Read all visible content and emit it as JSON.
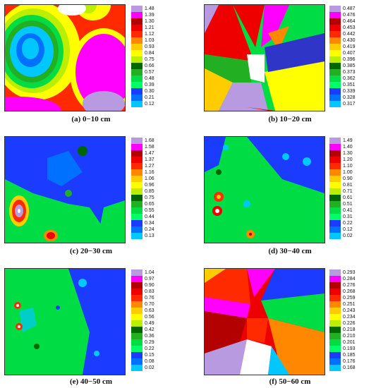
{
  "colors": [
    "#2f35c7",
    "#1b3cff",
    "#0070ff",
    "#00c8ff",
    "#00ff66",
    "#00dd44",
    "#22b022",
    "#006600",
    "#bbee00",
    "#ffff00",
    "#ffcc00",
    "#ff8800",
    "#ff2a00",
    "#ee0000",
    "#b30000",
    "#ff00ff",
    "#b79adf",
    "#ffffff"
  ],
  "chart_data": [
    {
      "type": "heatmap",
      "caption": "(a) 0−10 cm",
      "legend_ticks": [
        "1.48",
        "1.39",
        "1.30",
        "1.21",
        "1.12",
        "1.03",
        "0.93",
        "0.84",
        "0.75",
        "0.66",
        "0.57",
        "0.48",
        "0.39",
        "0.30",
        "0.21",
        "0.12"
      ]
    },
    {
      "type": "heatmap",
      "caption": "(b) 10−20 cm",
      "legend_ticks": [
        "0.487",
        "0.476",
        "0.464",
        "0.453",
        "0.442",
        "0.430",
        "0.419",
        "0.407",
        "0.396",
        "0.385",
        "0.373",
        "0.362",
        "0.351",
        "0.339",
        "0.328",
        "0.317"
      ]
    },
    {
      "type": "heatmap",
      "caption": "(c) 20−30 cm",
      "legend_ticks": [
        "1.68",
        "1.58",
        "1.47",
        "1.37",
        "1.27",
        "1.16",
        "1.06",
        "0.96",
        "0.85",
        "0.75",
        "0.65",
        "0.55",
        "0.44",
        "0.34",
        "0.24",
        "0.13"
      ]
    },
    {
      "type": "heatmap",
      "caption": "(d) 30−40 cm",
      "legend_ticks": [
        "1.49",
        "1.40",
        "1.30",
        "1.20",
        "1.10",
        "1.00",
        "0.90",
        "0.81",
        "0.71",
        "0.61",
        "0.51",
        "0.41",
        "0.31",
        "0.22",
        "0.12",
        "0.02"
      ]
    },
    {
      "type": "heatmap",
      "caption": "(e) 40−50 cm",
      "legend_ticks": [
        "1.04",
        "0.97",
        "0.90",
        "0.83",
        "0.76",
        "0.70",
        "0.63",
        "0.56",
        "0.49",
        "0.42",
        "0.36",
        "0.29",
        "0.22",
        "0.15",
        "0.08",
        "0.02"
      ]
    },
    {
      "type": "heatmap",
      "caption": "(f) 50−60 cm",
      "legend_ticks": [
        "0.293",
        "0.284",
        "0.276",
        "0.268",
        "0.259",
        "0.251",
        "0.243",
        "0.234",
        "0.226",
        "0.218",
        "0.210",
        "0.201",
        "0.193",
        "0.185",
        "0.176",
        "0.168"
      ]
    }
  ]
}
